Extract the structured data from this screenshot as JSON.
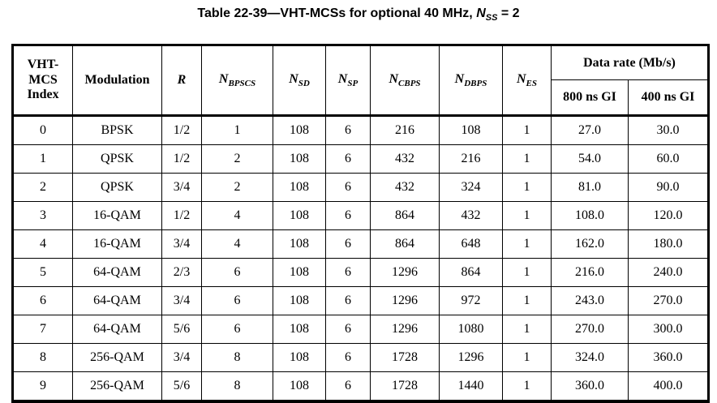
{
  "title": {
    "prefix": "Table 22-39—VHT-MCSs for optional 40 MHz, ",
    "var_base": "N",
    "var_sub": "SS",
    "suffix": " = 2"
  },
  "table": {
    "headers": {
      "vht_mcs_index_lines": [
        "VHT-",
        "MCS",
        "Index"
      ],
      "modulation": "Modulation",
      "r": "R",
      "n_cols": [
        {
          "base": "N",
          "sub": "BPSCS"
        },
        {
          "base": "N",
          "sub": "SD"
        },
        {
          "base": "N",
          "sub": "SP"
        },
        {
          "base": "N",
          "sub": "CBPS"
        },
        {
          "base": "N",
          "sub": "DBPS"
        },
        {
          "base": "N",
          "sub": "ES"
        }
      ],
      "data_rate_group": "Data rate (Mb/s)",
      "gi_800": "800 ns GI",
      "gi_400": "400 ns GI"
    },
    "column_keys": [
      "index",
      "modulation",
      "r",
      "n_bpscs",
      "n_sd",
      "n_sp",
      "n_cbps",
      "n_dbps",
      "n_es",
      "rate_800",
      "rate_400"
    ],
    "rows": [
      {
        "index": "0",
        "modulation": "BPSK",
        "r": "1/2",
        "n_bpscs": "1",
        "n_sd": "108",
        "n_sp": "6",
        "n_cbps": "216",
        "n_dbps": "108",
        "n_es": "1",
        "rate_800": "27.0",
        "rate_400": "30.0"
      },
      {
        "index": "1",
        "modulation": "QPSK",
        "r": "1/2",
        "n_bpscs": "2",
        "n_sd": "108",
        "n_sp": "6",
        "n_cbps": "432",
        "n_dbps": "216",
        "n_es": "1",
        "rate_800": "54.0",
        "rate_400": "60.0"
      },
      {
        "index": "2",
        "modulation": "QPSK",
        "r": "3/4",
        "n_bpscs": "2",
        "n_sd": "108",
        "n_sp": "6",
        "n_cbps": "432",
        "n_dbps": "324",
        "n_es": "1",
        "rate_800": "81.0",
        "rate_400": "90.0"
      },
      {
        "index": "3",
        "modulation": "16-QAM",
        "r": "1/2",
        "n_bpscs": "4",
        "n_sd": "108",
        "n_sp": "6",
        "n_cbps": "864",
        "n_dbps": "432",
        "n_es": "1",
        "rate_800": "108.0",
        "rate_400": "120.0"
      },
      {
        "index": "4",
        "modulation": "16-QAM",
        "r": "3/4",
        "n_bpscs": "4",
        "n_sd": "108",
        "n_sp": "6",
        "n_cbps": "864",
        "n_dbps": "648",
        "n_es": "1",
        "rate_800": "162.0",
        "rate_400": "180.0"
      },
      {
        "index": "5",
        "modulation": "64-QAM",
        "r": "2/3",
        "n_bpscs": "6",
        "n_sd": "108",
        "n_sp": "6",
        "n_cbps": "1296",
        "n_dbps": "864",
        "n_es": "1",
        "rate_800": "216.0",
        "rate_400": "240.0"
      },
      {
        "index": "6",
        "modulation": "64-QAM",
        "r": "3/4",
        "n_bpscs": "6",
        "n_sd": "108",
        "n_sp": "6",
        "n_cbps": "1296",
        "n_dbps": "972",
        "n_es": "1",
        "rate_800": "243.0",
        "rate_400": "270.0"
      },
      {
        "index": "7",
        "modulation": "64-QAM",
        "r": "5/6",
        "n_bpscs": "6",
        "n_sd": "108",
        "n_sp": "6",
        "n_cbps": "1296",
        "n_dbps": "1080",
        "n_es": "1",
        "rate_800": "270.0",
        "rate_400": "300.0"
      },
      {
        "index": "8",
        "modulation": "256-QAM",
        "r": "3/4",
        "n_bpscs": "8",
        "n_sd": "108",
        "n_sp": "6",
        "n_cbps": "1728",
        "n_dbps": "1296",
        "n_es": "1",
        "rate_800": "324.0",
        "rate_400": "360.0"
      },
      {
        "index": "9",
        "modulation": "256-QAM",
        "r": "5/6",
        "n_bpscs": "8",
        "n_sd": "108",
        "n_sp": "6",
        "n_cbps": "1728",
        "n_dbps": "1440",
        "n_es": "1",
        "rate_800": "360.0",
        "rate_400": "400.0"
      }
    ]
  }
}
